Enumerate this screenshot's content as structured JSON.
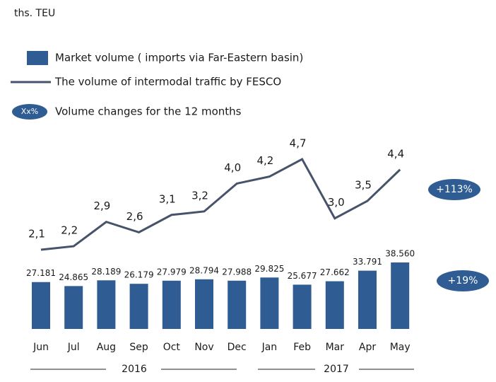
{
  "chart_data": {
    "type": "bar-line",
    "title": "ths. TEU",
    "categories": [
      "Jun",
      "Jul",
      "Aug",
      "Sep",
      "Oct",
      "Nov",
      "Dec",
      "Jan",
      "Feb",
      "Mar",
      "Apr",
      "May"
    ],
    "groups": [
      {
        "label": "2016"
      },
      {
        "label": "2017"
      }
    ],
    "series": [
      {
        "name": "Market volume ( imports via Far-Eastern basin)",
        "type": "bar",
        "color": "#2f5d93",
        "values": [
          27.181,
          24.865,
          28.189,
          26.179,
          27.979,
          28.794,
          27.988,
          29.825,
          25.677,
          27.662,
          33.791,
          38.56
        ],
        "value_labels": [
          "27.181",
          "24.865",
          "28.189",
          "26.179",
          "27.979",
          "28.794",
          "27.988",
          "29.825",
          "25.677",
          "27.662",
          "33.791",
          "38.560"
        ],
        "change": "+19%"
      },
      {
        "name": "The volume of intermodal traffic by FESCO",
        "type": "line",
        "color": "#46536a",
        "values": [
          2.1,
          2.2,
          2.9,
          2.6,
          3.1,
          3.2,
          4.0,
          4.2,
          4.7,
          3.0,
          3.5,
          4.4
        ],
        "value_labels": [
          "2,1",
          "2,2",
          "2,9",
          "2,6",
          "3,1",
          "3,2",
          "4,0",
          "4,2",
          "4,7",
          "3,0",
          "3,5",
          "4,4"
        ],
        "change": "+113%"
      }
    ],
    "change_legend": {
      "badge": "Xx%",
      "text": "Volume changes for the 12 months"
    }
  }
}
